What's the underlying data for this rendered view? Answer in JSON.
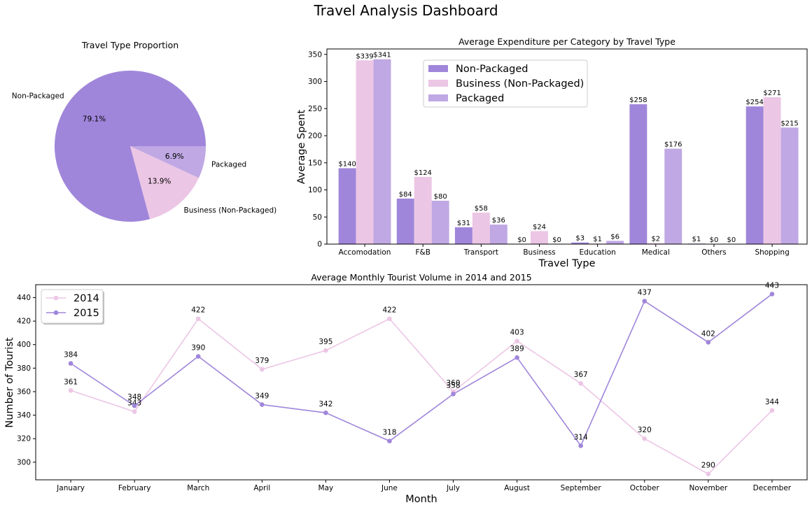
{
  "title": "Travel Analysis Dashboard",
  "colors": {
    "non_packaged": "#A086DA",
    "business": "#ECC6E5",
    "packaged": "#BFA8E3",
    "line2014": "#ECC6E5",
    "line2015": "#A086DA"
  },
  "chart_data": [
    {
      "type": "pie",
      "title": "Travel Type Proportion",
      "labels": [
        "Non-Packaged",
        "Business (Non-Packaged)",
        "Packaged"
      ],
      "values": [
        79.1,
        13.9,
        6.9
      ],
      "pct_labels": [
        "79.1%",
        "13.9%",
        "6.9%"
      ]
    },
    {
      "type": "bar",
      "title": "Average Expenditure per Category by Travel Type",
      "xlabel": "Travel Type",
      "ylabel": "Average Spent",
      "categories": [
        "Accomodation",
        "F&B",
        "Transport",
        "Business",
        "Education",
        "Medical",
        "Others",
        "Shopping"
      ],
      "ylim": [
        0,
        360
      ],
      "yticks": [
        0,
        50,
        100,
        150,
        200,
        250,
        300,
        350
      ],
      "legend_position": "top-center",
      "series": [
        {
          "name": "Non-Packaged",
          "values": [
            140,
            84,
            31,
            0,
            3,
            258,
            1,
            254
          ],
          "labels": [
            "$140",
            "$84",
            "$31",
            "$0",
            "$3",
            "$258",
            "$1",
            "$254"
          ]
        },
        {
          "name": "Business (Non-Packaged)",
          "values": [
            339,
            124,
            58,
            24,
            1,
            2,
            0,
            271
          ],
          "labels": [
            "$339",
            "$124",
            "$58",
            "$24",
            "$1",
            "$2",
            "$0",
            "$271"
          ]
        },
        {
          "name": "Packaged",
          "values": [
            341,
            80,
            36,
            0,
            6,
            176,
            0,
            215
          ],
          "labels": [
            "$341",
            "$80",
            "$36",
            "$0",
            "$6",
            "$176",
            "$0",
            "$215"
          ]
        }
      ]
    },
    {
      "type": "line",
      "title": "Average Monthly Tourist Volume in 2014 and 2015",
      "xlabel": "Month",
      "ylabel": "Number of Tourist",
      "categories": [
        "January",
        "February",
        "March",
        "April",
        "May",
        "June",
        "July",
        "August",
        "September",
        "October",
        "November",
        "December"
      ],
      "ylim": [
        285,
        451
      ],
      "yticks": [
        300,
        320,
        340,
        360,
        380,
        400,
        420,
        440
      ],
      "legend_position": "top-left",
      "series": [
        {
          "name": "2014",
          "values": [
            361,
            343,
            422,
            379,
            395,
            422,
            360,
            403,
            367,
            320,
            290,
            344
          ]
        },
        {
          "name": "2015",
          "values": [
            384,
            348,
            390,
            349,
            342,
            318,
            358,
            389,
            314,
            437,
            402,
            443
          ]
        }
      ]
    }
  ]
}
